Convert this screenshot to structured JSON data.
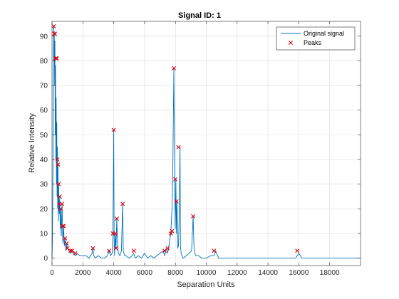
{
  "chart_data": {
    "type": "line",
    "title": "Signal ID: 1",
    "xlabel": "Separation Units",
    "ylabel": "Relative Intensity",
    "xlim": [
      0,
      20000
    ],
    "ylim": [
      -3,
      96
    ],
    "xticks": [
      0,
      2000,
      4000,
      6000,
      8000,
      10000,
      12000,
      14000,
      16000,
      18000
    ],
    "xtick_labels": [
      "0",
      "2000",
      "4000",
      "6000",
      "8000",
      "10000",
      "12000",
      "14000",
      "16000",
      "18000"
    ],
    "yticks": [
      0,
      10,
      20,
      30,
      40,
      50,
      60,
      70,
      80,
      90
    ],
    "ytick_labels": [
      "0",
      "10",
      "20",
      "30",
      "40",
      "50",
      "60",
      "70",
      "80",
      "90"
    ],
    "grid": true,
    "legend_position": "top-right",
    "series": [
      {
        "name": "Original signal",
        "color": "#0072bd",
        "style": "line",
        "x": [
          0,
          30,
          60,
          90,
          110,
          130,
          150,
          170,
          190,
          210,
          230,
          250,
          270,
          290,
          310,
          330,
          350,
          370,
          390,
          410,
          430,
          450,
          470,
          500,
          530,
          560,
          600,
          650,
          700,
          750,
          800,
          850,
          900,
          950,
          1000,
          1100,
          1200,
          1300,
          1400,
          1500,
          1600,
          1800,
          2000,
          2200,
          2400,
          2600,
          2650,
          2700,
          2800,
          3000,
          3200,
          3400,
          3600,
          3700,
          3800,
          3900,
          3950,
          4000,
          4030,
          4060,
          4100,
          4150,
          4200,
          4250,
          4300,
          4400,
          4500,
          4580,
          4620,
          4700,
          4800,
          5000,
          5200,
          5300,
          5400,
          5600,
          5800,
          6000,
          6200,
          6400,
          6600,
          6800,
          7000,
          7200,
          7300,
          7400,
          7500,
          7600,
          7700,
          7780,
          7840,
          7900,
          7950,
          7990,
          8030,
          8070,
          8100,
          8150,
          8200,
          8250,
          8300,
          8330,
          8370,
          8420,
          8500,
          8700,
          8900,
          9050,
          9150,
          9200,
          9300,
          9500,
          9700,
          10000,
          10300,
          10500,
          10600,
          10800,
          11000,
          11500,
          12000,
          12500,
          13000,
          13500,
          14000,
          14500,
          15000,
          15500,
          15800,
          15900,
          16000,
          16200,
          16500,
          17000,
          17500,
          18000,
          18500,
          19000,
          19500,
          20000
        ],
        "y": [
          0,
          8,
          35,
          60,
          94,
          80,
          92,
          70,
          88,
          50,
          78,
          40,
          65,
          30,
          55,
          25,
          45,
          20,
          38,
          15,
          30,
          22,
          18,
          25,
          12,
          20,
          9,
          22,
          6,
          13,
          5,
          8,
          3,
          6,
          4,
          3,
          2,
          3,
          2,
          1,
          2,
          1,
          1,
          1,
          0,
          2,
          4,
          1,
          0,
          1,
          0,
          0,
          1,
          3,
          1,
          2,
          10,
          52,
          8,
          1,
          10,
          4,
          16,
          6,
          2,
          1,
          3,
          22,
          3,
          1,
          1,
          0,
          1,
          2,
          0,
          1,
          0,
          2,
          0,
          1,
          0,
          1,
          2,
          3,
          1,
          4,
          2,
          6,
          10,
          20,
          40,
          77,
          30,
          12,
          32,
          10,
          23,
          4,
          5,
          18,
          45,
          5,
          2,
          1,
          0,
          1,
          2,
          3,
          17,
          5,
          1,
          1,
          0,
          0,
          1,
          1,
          3,
          0,
          0,
          0,
          0,
          0,
          0,
          0,
          0,
          0,
          0,
          0,
          0,
          1,
          2,
          0,
          0,
          0,
          0,
          0,
          0,
          0,
          0,
          0
        ]
      },
      {
        "name": "Peaks",
        "color": "#e0000a",
        "style": "x-marker",
        "x": [
          110,
          150,
          190,
          250,
          310,
          350,
          390,
          430,
          470,
          500,
          560,
          650,
          700,
          750,
          850,
          950,
          1000,
          1200,
          1300,
          1500,
          2650,
          3700,
          3950,
          4000,
          4100,
          4150,
          4200,
          4580,
          5300,
          7300,
          7500,
          7700,
          7780,
          7900,
          7990,
          8070,
          8200,
          9150,
          10500,
          15900
        ],
        "y": [
          94,
          91,
          91,
          81,
          81,
          40,
          38,
          30,
          22,
          25,
          20,
          22,
          13,
          13,
          8,
          6,
          4,
          3,
          3,
          2,
          4,
          3,
          10,
          52,
          10,
          4,
          16,
          22,
          3,
          3,
          4,
          10,
          11,
          77,
          32,
          23,
          45,
          17,
          3,
          3
        ]
      }
    ]
  }
}
